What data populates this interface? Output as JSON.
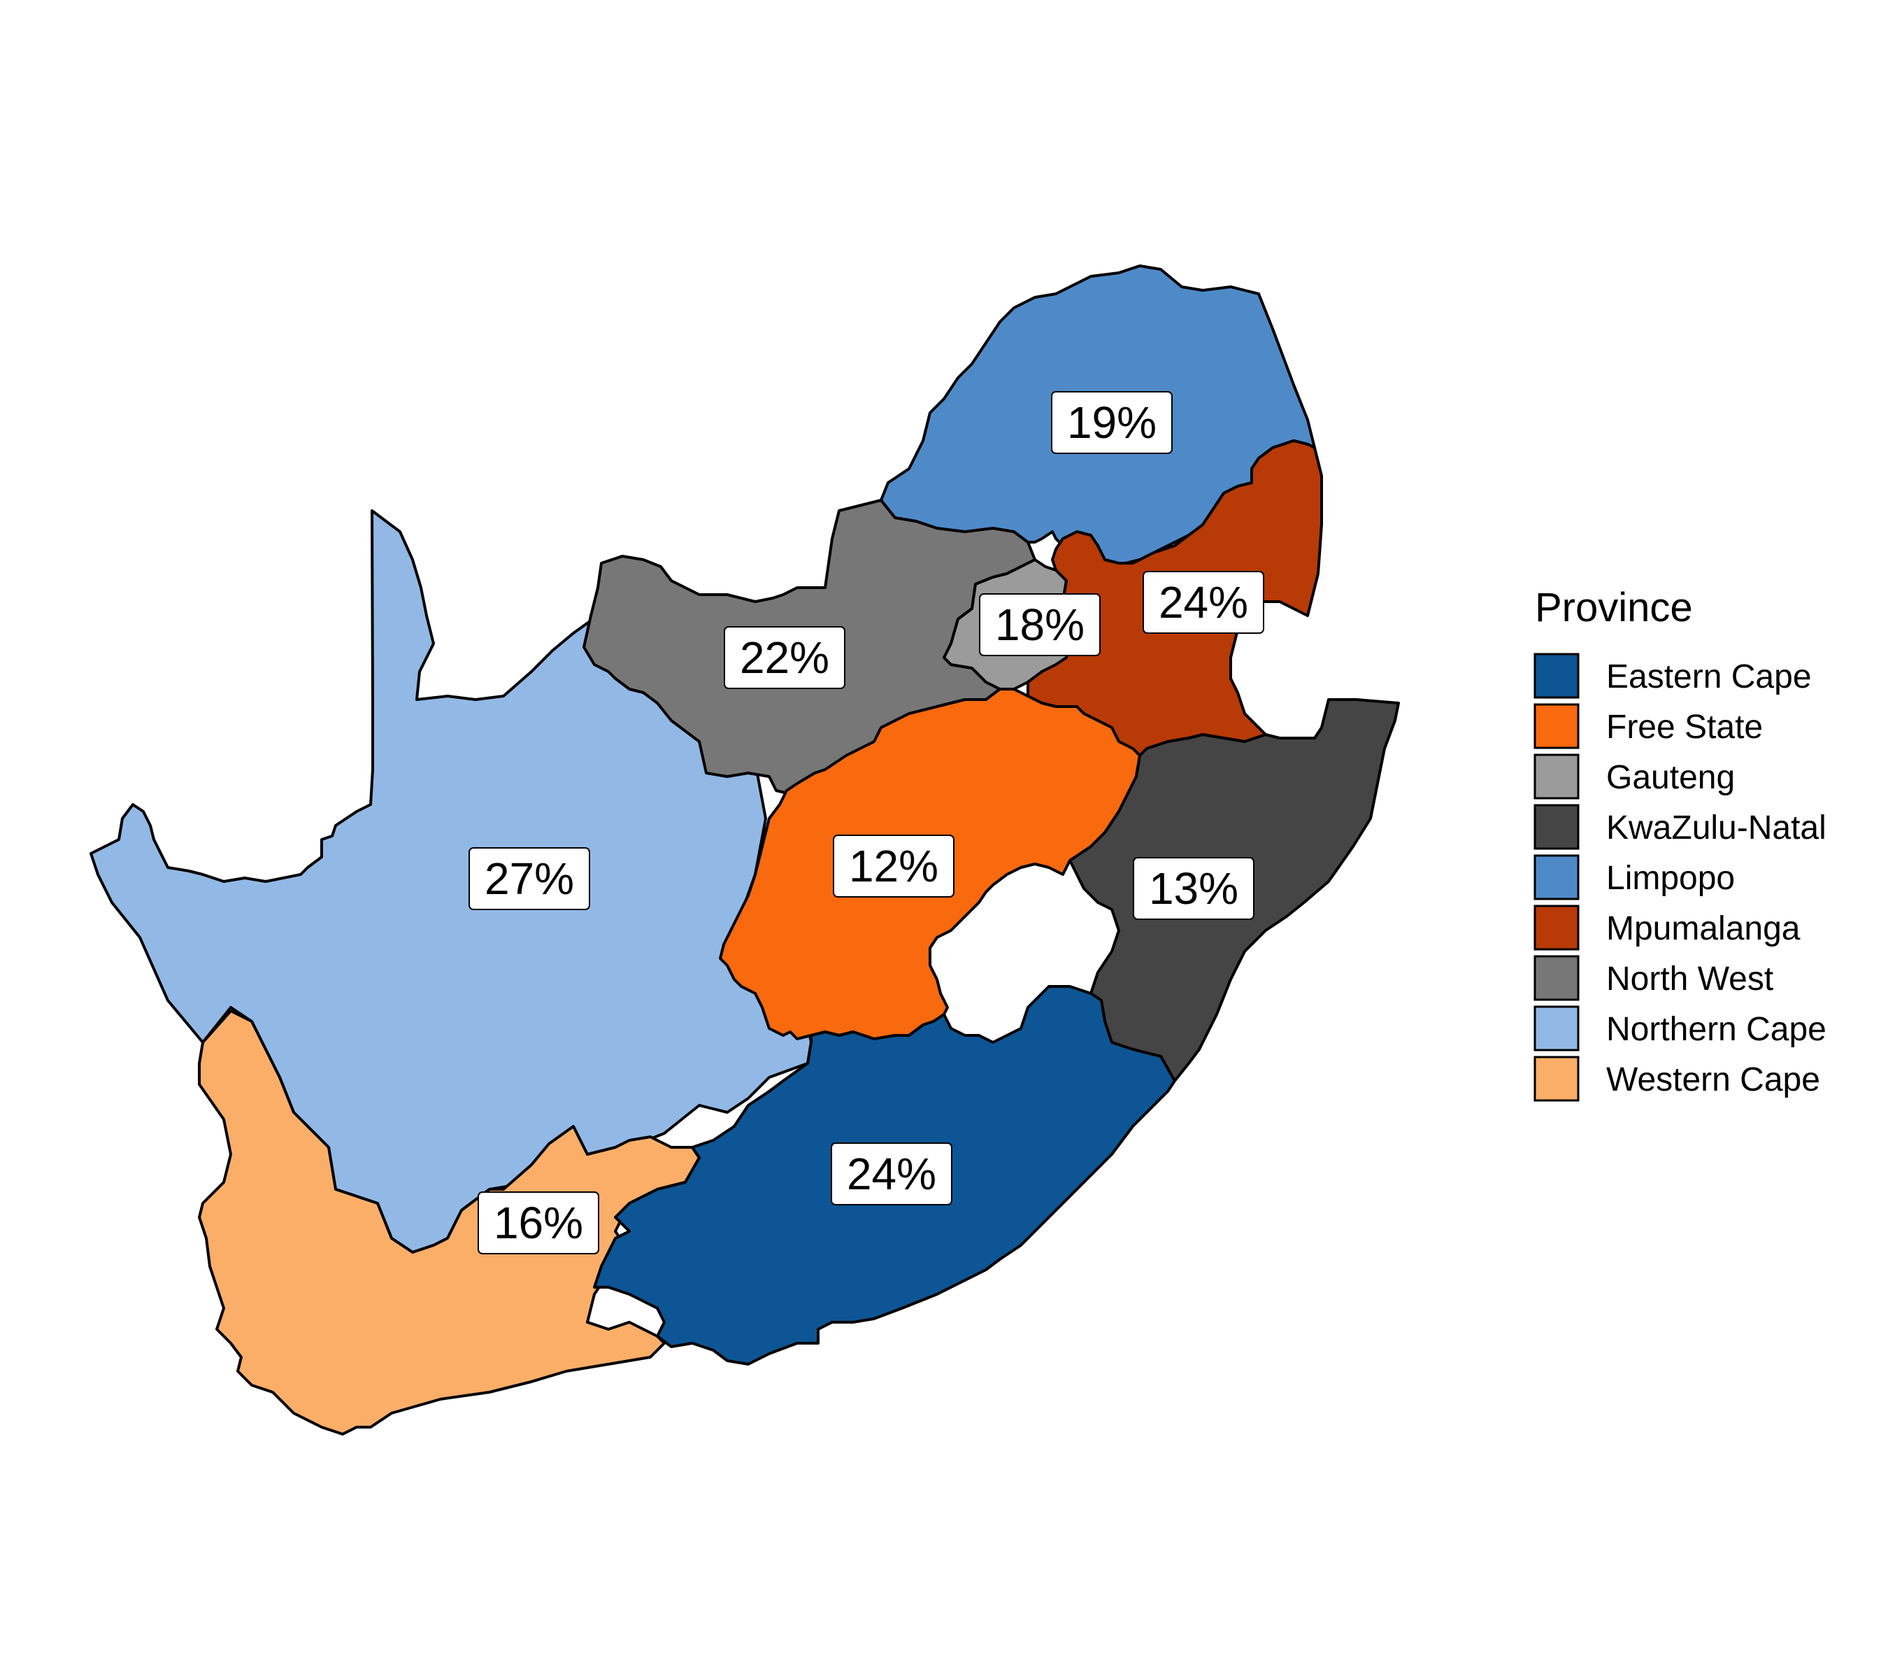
{
  "chart_data": {
    "type": "choropleth",
    "legend": {
      "title": "Province",
      "placement": "right"
    },
    "regions": [
      {
        "name": "Eastern Cape",
        "value": "24%",
        "color": "#0d5594"
      },
      {
        "name": "Free State",
        "value": "12%",
        "color": "#f9690e"
      },
      {
        "name": "Gauteng",
        "value": "18%",
        "color": "#9b9b9b"
      },
      {
        "name": "KwaZulu-Natal",
        "value": "13%",
        "color": "#454545"
      },
      {
        "name": "Limpopo",
        "value": "19%",
        "color": "#4f8ac8"
      },
      {
        "name": "Mpumalanga",
        "value": "24%",
        "color": "#b83a06"
      },
      {
        "name": "North West",
        "value": "22%",
        "color": "#777777"
      },
      {
        "name": "Northern Cape",
        "value": "27%",
        "color": "#92b9e6"
      },
      {
        "name": "Western Cape",
        "value": "16%",
        "color": "#fbae68"
      }
    ]
  }
}
